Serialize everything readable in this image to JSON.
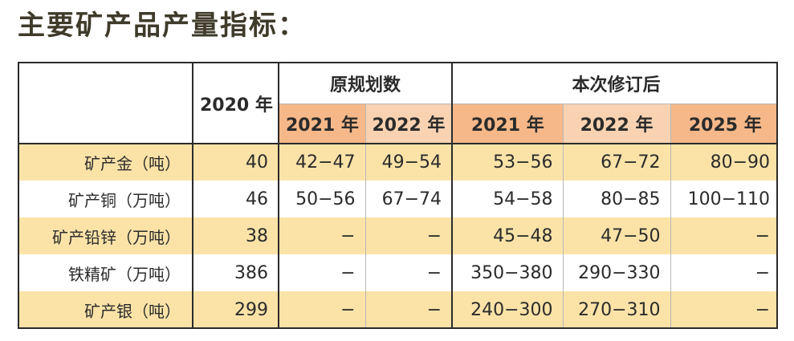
{
  "title": "主要矿产品产量指标：",
  "header": {
    "col_2020": "2020 年",
    "group_original": "原规划数",
    "group_revised": "本次修订后",
    "orig_years": [
      "2021 年",
      "2022 年"
    ],
    "rev_years": [
      "2021 年",
      "2022 年",
      "2025 年"
    ]
  },
  "rows": [
    {
      "label": "矿产金（吨）",
      "y2020": "40",
      "orig2021": "42−47",
      "orig2022": "49−54",
      "rev2021": "53−56",
      "rev2022": "67−72",
      "rev2025": "80−90"
    },
    {
      "label": "矿产铜（万吨）",
      "y2020": "46",
      "orig2021": "50−56",
      "orig2022": "67−74",
      "rev2021": "54−58",
      "rev2022": "80−85",
      "rev2025": "100−110"
    },
    {
      "label": "矿产铅锌（万吨）",
      "y2020": "38",
      "orig2021": "−",
      "orig2022": "−",
      "rev2021": "45−48",
      "rev2022": "47−50",
      "rev2025": "−"
    },
    {
      "label": "铁精矿（万吨）",
      "y2020": "386",
      "orig2021": "−",
      "orig2022": "−",
      "rev2021": "350−380",
      "rev2022": "290−330",
      "rev2025": "−"
    },
    {
      "label": "矿产银（吨）",
      "y2020": "299",
      "orig2021": "−",
      "orig2022": "−",
      "rev2021": "240−300",
      "rev2022": "270−310",
      "rev2025": "−"
    }
  ]
}
